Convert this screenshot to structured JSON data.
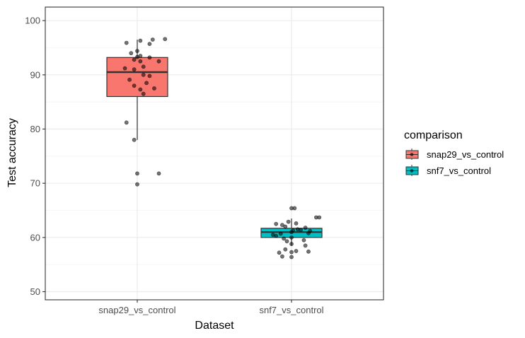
{
  "chart_data": {
    "type": "boxplot",
    "xlabel": "Dataset",
    "ylabel": "Test accuracy",
    "ylim": [
      48.5,
      102.5
    ],
    "yticks": [
      50,
      60,
      70,
      80,
      90,
      100
    ],
    "categories": [
      "snap29_vs_control",
      "snf7_vs_control"
    ],
    "grid": true,
    "legend": {
      "title": "comparison",
      "position": "right",
      "entries": [
        "snap29_vs_control",
        "snf7_vs_control"
      ]
    },
    "colors": {
      "snap29_vs_control": "#F8766D",
      "snf7_vs_control": "#00BFC4"
    },
    "boxes": [
      {
        "category": "snap29_vs_control",
        "whisker_low": 78,
        "q1": 86,
        "median": 90.5,
        "q3": 93.2,
        "whisker_high": 96.5
      },
      {
        "category": "snf7_vs_control",
        "whisker_low": 58.5,
        "q1": 60,
        "median": 61,
        "q3": 61.7,
        "whisker_high": 63.5
      }
    ],
    "points": [
      {
        "category": "snap29_vs_control",
        "jitter": [
          0.02,
          -0.07,
          0.1,
          0.08,
          0.18,
          0.0,
          -0.04,
          0.02,
          0.0,
          0.08,
          -0.02,
          0.02,
          0.14,
          0.04,
          -0.08,
          -0.02,
          0.04,
          0.08,
          -0.05,
          0.06,
          -0.02,
          0.02,
          0.04,
          0.11,
          -0.07,
          -0.02,
          0.14,
          0.0,
          0.0
        ],
        "values": [
          96.3,
          95.9,
          96.5,
          95.7,
          96.6,
          94.4,
          94.0,
          93.5,
          93.3,
          93.2,
          92.8,
          92.5,
          92.5,
          91.5,
          91.2,
          91.0,
          90.0,
          89.8,
          89.1,
          88.5,
          88.0,
          87.3,
          86.5,
          87.5,
          81.2,
          78.0,
          71.8,
          71.8,
          69.8
        ]
      },
      {
        "category": "snf7_vs_control",
        "jitter": [
          0.0,
          0.02,
          0.18,
          0.16,
          -0.1,
          -0.02,
          0.03,
          -0.04,
          -0.06,
          0.09,
          0.04,
          0.01,
          0.12,
          0.06,
          0.0,
          0.11,
          -0.07,
          -0.12,
          -0.1,
          0.0,
          0.08,
          -0.05,
          -0.03,
          0.0,
          0.09,
          -0.04,
          0.03,
          0.11,
          -0.08,
          -0.06,
          0.0,
          0.0
        ],
        "values": [
          65.4,
          65.4,
          63.7,
          63.7,
          62.5,
          62.9,
          62.6,
          62.0,
          62.3,
          61.8,
          61.5,
          61.3,
          61.2,
          61.4,
          61.0,
          60.8,
          60.7,
          60.5,
          60.3,
          60.0,
          59.5,
          59.8,
          59.3,
          58.8,
          58.5,
          57.8,
          57.5,
          57.4,
          57.2,
          56.5,
          56.4,
          57.3
        ]
      }
    ]
  }
}
